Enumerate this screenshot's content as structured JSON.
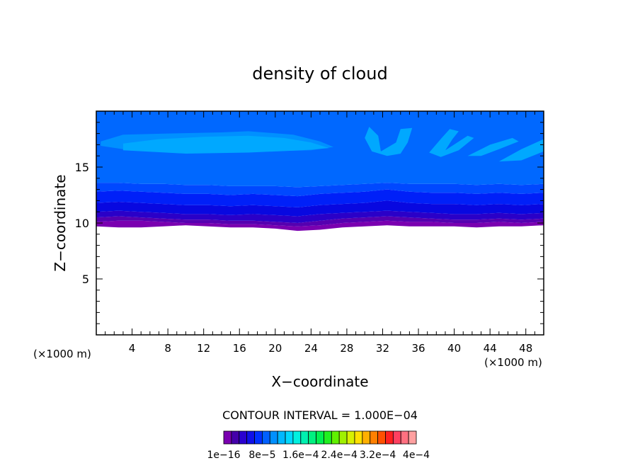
{
  "chart_data": {
    "type": "heatmap",
    "title": "density of cloud",
    "xlabel": "X−coordinate",
    "ylabel": "Z−coordinate",
    "x_unit_left": "(×1000 m)",
    "x_unit_right": "(×1000 m)",
    "xlim": [
      0,
      50
    ],
    "ylim": [
      0,
      20
    ],
    "xticks": [
      4,
      8,
      12,
      16,
      20,
      24,
      28,
      32,
      36,
      40,
      44,
      48
    ],
    "yticks": [
      5,
      10,
      15
    ],
    "grid": false,
    "contour_interval_label": "CONTOUR INTERVAL = 1.000E−04",
    "colorbar": {
      "colors": [
        "#7a00b0",
        "#4400aa",
        "#2a00d0",
        "#1010e8",
        "#0030ff",
        "#0060ff",
        "#0090ff",
        "#00b8ff",
        "#00d8ff",
        "#00f0e0",
        "#00f0b0",
        "#00f080",
        "#00f050",
        "#20f020",
        "#60f000",
        "#a0f000",
        "#d8f000",
        "#ffe000",
        "#ffb000",
        "#ff8000",
        "#ff5000",
        "#ff2020",
        "#ff4060",
        "#ff7080",
        "#ffa0a0"
      ],
      "labels": [
        "1e−16",
        "8e−5",
        "1.6e−4",
        "2.4e−4",
        "3.2e−4",
        "4e−4"
      ]
    },
    "bands": [
      {
        "color": "#7a00b0",
        "zmin_profile": [
          9.7,
          9.6,
          9.6,
          9.7,
          9.8,
          9.7,
          9.6,
          9.6,
          9.5,
          9.3,
          9.4,
          9.6,
          9.7,
          9.8,
          9.7,
          9.7,
          9.7,
          9.6,
          9.7,
          9.7,
          9.8
        ],
        "zmax_profile": [
          10.1,
          10.2,
          10.2,
          10.1,
          10.0,
          10.0,
          9.9,
          9.9,
          9.8,
          9.7,
          9.8,
          10.0,
          10.1,
          10.2,
          10.1,
          10.1,
          10.0,
          10.0,
          10.1,
          10.0,
          10.1
        ]
      },
      {
        "color": "#5500b0",
        "zmin_profile": [
          10.1,
          10.2,
          10.2,
          10.1,
          10.0,
          10.0,
          9.9,
          9.9,
          9.8,
          9.7,
          9.8,
          10.0,
          10.1,
          10.2,
          10.1,
          10.1,
          10.0,
          10.0,
          10.1,
          10.0,
          10.1
        ],
        "zmax_profile": [
          10.5,
          10.6,
          10.5,
          10.4,
          10.3,
          10.3,
          10.2,
          10.2,
          10.1,
          10.0,
          10.2,
          10.4,
          10.5,
          10.6,
          10.5,
          10.4,
          10.3,
          10.3,
          10.4,
          10.3,
          10.4
        ]
      },
      {
        "color": "#2a00c8",
        "zmin_profile": [
          10.5,
          10.6,
          10.5,
          10.4,
          10.3,
          10.3,
          10.2,
          10.2,
          10.1,
          10.0,
          10.2,
          10.4,
          10.5,
          10.6,
          10.5,
          10.4,
          10.3,
          10.3,
          10.4,
          10.3,
          10.4
        ],
        "zmax_profile": [
          11.0,
          11.1,
          11.0,
          10.9,
          10.8,
          10.8,
          10.7,
          10.8,
          10.7,
          10.6,
          10.8,
          10.9,
          11.0,
          11.1,
          11.0,
          10.9,
          10.8,
          10.8,
          10.9,
          10.8,
          10.9
        ]
      },
      {
        "color": "#0808e0",
        "zmin_profile": [
          11.0,
          11.1,
          11.0,
          10.9,
          10.8,
          10.8,
          10.7,
          10.8,
          10.7,
          10.6,
          10.8,
          10.9,
          11.0,
          11.1,
          11.0,
          10.9,
          10.8,
          10.8,
          10.9,
          10.8,
          10.9
        ],
        "zmax_profile": [
          11.8,
          11.9,
          11.8,
          11.7,
          11.6,
          11.6,
          11.5,
          11.6,
          11.5,
          11.4,
          11.6,
          11.7,
          11.8,
          12.0,
          11.8,
          11.7,
          11.7,
          11.6,
          11.7,
          11.6,
          11.7
        ]
      },
      {
        "color": "#0020f8",
        "zmin_profile": [
          11.8,
          11.9,
          11.8,
          11.7,
          11.6,
          11.6,
          11.5,
          11.6,
          11.5,
          11.4,
          11.6,
          11.7,
          11.8,
          12.0,
          11.8,
          11.7,
          11.7,
          11.6,
          11.7,
          11.6,
          11.7
        ],
        "zmax_profile": [
          12.8,
          12.9,
          12.8,
          12.7,
          12.6,
          12.6,
          12.5,
          12.6,
          12.5,
          12.4,
          12.6,
          12.7,
          12.8,
          13.0,
          12.8,
          12.7,
          12.7,
          12.6,
          12.7,
          12.6,
          12.7
        ]
      },
      {
        "color": "#0048ff",
        "zmin_profile": [
          12.8,
          12.9,
          12.8,
          12.7,
          12.6,
          12.6,
          12.5,
          12.6,
          12.5,
          12.4,
          12.6,
          12.7,
          12.8,
          13.0,
          12.8,
          12.7,
          12.7,
          12.6,
          12.7,
          12.6,
          12.7
        ],
        "zmax_profile": [
          13.6,
          13.6,
          13.5,
          13.5,
          13.4,
          13.4,
          13.3,
          13.3,
          13.3,
          13.2,
          13.3,
          13.4,
          13.5,
          13.6,
          13.5,
          13.5,
          13.5,
          13.4,
          13.5,
          13.4,
          13.5
        ]
      },
      {
        "color": "#0068ff",
        "zmin_profile": [
          13.6,
          13.6,
          13.5,
          13.5,
          13.4,
          13.4,
          13.3,
          13.3,
          13.3,
          13.2,
          13.3,
          13.4,
          13.5,
          13.6,
          13.5,
          13.5,
          13.5,
          13.4,
          13.5,
          13.4,
          13.5
        ],
        "zmax_profile": [
          20,
          20,
          20,
          20,
          20,
          20,
          20,
          20,
          20,
          20,
          20,
          20,
          20,
          20,
          20,
          20,
          20,
          20,
          20,
          20,
          20
        ]
      }
    ],
    "patches": [
      {
        "color": "#0090ff",
        "points": [
          [
            0.5,
            17.3
          ],
          [
            3,
            17.9
          ],
          [
            8,
            18.0
          ],
          [
            14,
            18.1
          ],
          [
            17,
            18.2
          ],
          [
            22,
            17.9
          ],
          [
            25,
            17.3
          ],
          [
            26.5,
            16.8
          ],
          [
            24,
            16.5
          ],
          [
            18,
            16.4
          ],
          [
            10,
            16.3
          ],
          [
            3,
            16.6
          ],
          [
            0.5,
            16.9
          ]
        ]
      },
      {
        "color": "#00a8ff",
        "points": [
          [
            3,
            17.1
          ],
          [
            7,
            17.5
          ],
          [
            12,
            17.7
          ],
          [
            17,
            17.8
          ],
          [
            21,
            17.6
          ],
          [
            24,
            17.2
          ],
          [
            26,
            16.7
          ],
          [
            23,
            16.5
          ],
          [
            17,
            16.3
          ],
          [
            10,
            16.2
          ],
          [
            3,
            16.5
          ]
        ]
      },
      {
        "color": "#00a8ff",
        "points": [
          [
            30.5,
            18.6
          ],
          [
            31.5,
            17.8
          ],
          [
            31.8,
            16.4
          ],
          [
            33.5,
            17.2
          ],
          [
            34,
            18.4
          ],
          [
            35.3,
            18.5
          ],
          [
            34.8,
            17.2
          ],
          [
            34,
            16.2
          ],
          [
            32.5,
            16.0
          ],
          [
            30.8,
            16.4
          ],
          [
            30.0,
            17.6
          ]
        ]
      },
      {
        "color": "#00a8ff",
        "points": [
          [
            37.2,
            16.3
          ],
          [
            38.6,
            17.6
          ],
          [
            39.5,
            18.4
          ],
          [
            40.5,
            18.2
          ],
          [
            39.8,
            17.5
          ],
          [
            39,
            16.5
          ],
          [
            41.5,
            17.8
          ],
          [
            42.2,
            17.6
          ],
          [
            40.5,
            16.5
          ],
          [
            38.5,
            15.9
          ]
        ]
      },
      {
        "color": "#00a8ff",
        "points": [
          [
            41.5,
            16.0
          ],
          [
            44,
            17.0
          ],
          [
            46.5,
            17.6
          ],
          [
            47.2,
            17.3
          ],
          [
            45,
            16.6
          ],
          [
            43,
            16.0
          ]
        ]
      },
      {
        "color": "#00a8ff",
        "points": [
          [
            45,
            15.5
          ],
          [
            47.5,
            16.6
          ],
          [
            50,
            17.5
          ],
          [
            50,
            16.4
          ],
          [
            47.5,
            15.6
          ]
        ]
      }
    ]
  }
}
